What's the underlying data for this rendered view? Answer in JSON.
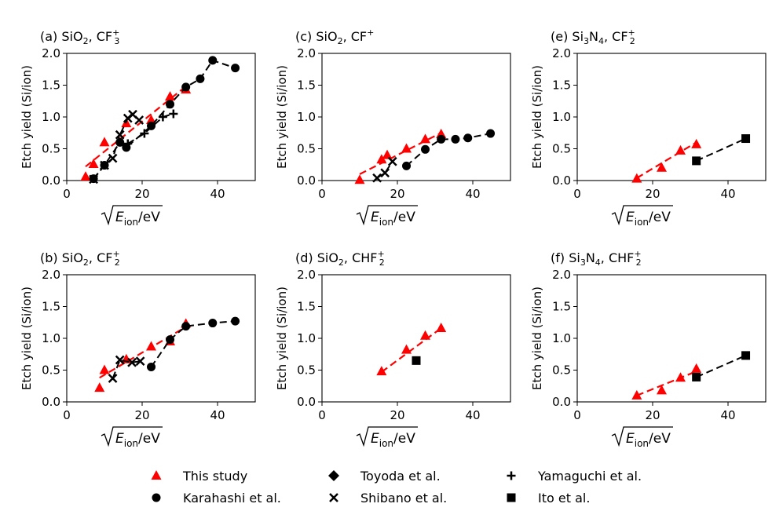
{
  "chart_data": [
    {
      "panel": "a",
      "type": "scatter",
      "title": {
        "prefix": "(a) SiO",
        "sub": "2",
        "mid": ", CF",
        "ionsub": "3",
        "ionsup": "+"
      },
      "ylabel": "Etch yield (Si/ion)",
      "xlabel": {
        "main": "E",
        "sub": "ion",
        "tail": "/eV"
      },
      "xlim": [
        0,
        50
      ],
      "ylim": [
        0,
        2.0
      ],
      "xticks": [
        0,
        20,
        40
      ],
      "yticks": [
        0.0,
        0.5,
        1.0,
        1.5,
        2.0
      ],
      "ytick_labels": [
        "0.0",
        "0.5",
        "1.0",
        "1.5",
        "2.0"
      ],
      "series": [
        {
          "name": "This study",
          "marker": "triangle",
          "color": "#ff0000",
          "points": [
            [
              5,
              0.06
            ],
            [
              7.1,
              0.26
            ],
            [
              10,
              0.6
            ],
            [
              15.8,
              0.9
            ],
            [
              22.4,
              0.95
            ],
            [
              27.4,
              1.32
            ],
            [
              31.6,
              1.43
            ]
          ]
        },
        {
          "name": "This study fit",
          "line": true,
          "color": "#ff0000",
          "points": [
            [
              5,
              0.22
            ],
            [
              31.6,
              1.48
            ]
          ]
        },
        {
          "name": "Karahashi et al.",
          "marker": "circle",
          "color": "#000000",
          "connect": true,
          "points": [
            [
              7.1,
              0.03
            ],
            [
              10,
              0.24
            ],
            [
              14.1,
              0.6
            ],
            [
              15.8,
              0.52
            ],
            [
              22.4,
              0.86
            ],
            [
              27.4,
              1.2
            ],
            [
              31.6,
              1.47
            ],
            [
              35.4,
              1.6
            ],
            [
              38.7,
              1.89
            ],
            [
              44.7,
              1.77
            ]
          ]
        },
        {
          "name": "Shibano et al.",
          "marker": "x",
          "color": "#000000",
          "connect": true,
          "points": [
            [
              7.1,
              0.02
            ],
            [
              10,
              0.24
            ],
            [
              12.2,
              0.35
            ],
            [
              14.1,
              0.72
            ],
            [
              16.2,
              0.98
            ],
            [
              17.5,
              1.04
            ],
            [
              19.2,
              0.95
            ]
          ]
        },
        {
          "name": "Yamaguchi et al.",
          "marker": "plus",
          "color": "#000000",
          "connect": true,
          "points": [
            [
              16.2,
              0.58
            ],
            [
              20.6,
              0.74
            ],
            [
              25.5,
              1.0
            ],
            [
              28.3,
              1.05
            ]
          ]
        }
      ]
    },
    {
      "panel": "b",
      "type": "scatter",
      "title": {
        "prefix": "(b) SiO",
        "sub": "2",
        "mid": ", CF",
        "ionsub": "2",
        "ionsup": "+"
      },
      "ylabel": "Etch yield (Si/ion)",
      "xlabel": {
        "main": "E",
        "sub": "ion",
        "tail": "/eV"
      },
      "xlim": [
        0,
        50
      ],
      "ylim": [
        0,
        2.0
      ],
      "xticks": [
        0,
        20,
        40
      ],
      "yticks": [
        0.0,
        0.5,
        1.0,
        1.5,
        2.0
      ],
      "ytick_labels": [
        "0.0",
        "0.5",
        "1.0",
        "1.5",
        "2.0"
      ],
      "series": [
        {
          "name": "This study",
          "marker": "triangle",
          "color": "#ff0000",
          "points": [
            [
              8.7,
              0.22
            ],
            [
              10,
              0.5
            ],
            [
              15.8,
              0.67
            ],
            [
              22.4,
              0.87
            ],
            [
              27.4,
              0.95
            ],
            [
              31.6,
              1.23
            ]
          ]
        },
        {
          "name": "This study fit",
          "line": true,
          "color": "#ff0000",
          "points": [
            [
              8.7,
              0.38
            ],
            [
              31.6,
              1.18
            ]
          ]
        },
        {
          "name": "Karahashi et al.",
          "marker": "circle",
          "color": "#000000",
          "connect": true,
          "points": [
            [
              22.4,
              0.55
            ],
            [
              27.4,
              0.98
            ],
            [
              31.6,
              1.19
            ],
            [
              38.7,
              1.24
            ],
            [
              44.7,
              1.27
            ]
          ]
        },
        {
          "name": "Shibano et al.",
          "marker": "x",
          "color": "#000000",
          "connect": true,
          "points": [
            [
              12.2,
              0.37
            ],
            [
              14.1,
              0.66
            ],
            [
              17.3,
              0.62
            ],
            [
              19.5,
              0.64
            ]
          ]
        }
      ]
    },
    {
      "panel": "c",
      "type": "scatter",
      "title": {
        "prefix": "(c) SiO",
        "sub": "2",
        "mid": ", CF",
        "ionsub": "",
        "ionsup": "+"
      },
      "ylabel": "Etch yield (Si/ion)",
      "xlabel": {
        "main": "E",
        "sub": "ion",
        "tail": "/eV"
      },
      "xlim": [
        0,
        50
      ],
      "ylim": [
        0,
        2.0
      ],
      "xticks": [
        0,
        20,
        40
      ],
      "yticks": [
        0.0,
        0.5,
        1.0,
        1.5,
        2.0
      ],
      "ytick_labels": [
        "0.0",
        "0.5",
        "1.0",
        "1.5",
        "2.0"
      ],
      "series": [
        {
          "name": "This study",
          "marker": "triangle",
          "color": "#ff0000",
          "points": [
            [
              10,
              0.01
            ],
            [
              15.8,
              0.33
            ],
            [
              17.3,
              0.4
            ],
            [
              22.4,
              0.5
            ],
            [
              27.4,
              0.65
            ],
            [
              31.6,
              0.73
            ]
          ]
        },
        {
          "name": "This study fit",
          "line": true,
          "color": "#ff0000",
          "points": [
            [
              10,
              0.1
            ],
            [
              31.6,
              0.75
            ]
          ]
        },
        {
          "name": "Karahashi et al.",
          "marker": "circle",
          "color": "#000000",
          "connect": true,
          "points": [
            [
              22.4,
              0.23
            ],
            [
              27.4,
              0.49
            ],
            [
              31.6,
              0.65
            ],
            [
              35.4,
              0.65
            ],
            [
              38.7,
              0.67
            ],
            [
              44.7,
              0.74
            ]
          ]
        },
        {
          "name": "Shibano et al.",
          "marker": "x",
          "color": "#000000",
          "connect": true,
          "points": [
            [
              14.6,
              0.04
            ],
            [
              16.7,
              0.12
            ],
            [
              18.7,
              0.3
            ]
          ]
        }
      ]
    },
    {
      "panel": "d",
      "type": "scatter",
      "title": {
        "prefix": "(d) SiO",
        "sub": "2",
        "mid": ", CHF",
        "ionsub": "2",
        "ionsup": "+"
      },
      "ylabel": "Etch yield (Si/ion)",
      "xlabel": {
        "main": "E",
        "sub": "ion",
        "tail": "/eV"
      },
      "xlim": [
        0,
        50
      ],
      "ylim": [
        0,
        2.0
      ],
      "xticks": [
        0,
        20,
        40
      ],
      "yticks": [
        0.0,
        0.5,
        1.0,
        1.5,
        2.0
      ],
      "ytick_labels": [
        "0.0",
        "0.5",
        "1.0",
        "1.5",
        "2.0"
      ],
      "series": [
        {
          "name": "This study",
          "marker": "triangle",
          "color": "#ff0000",
          "points": [
            [
              15.8,
              0.48
            ],
            [
              22.4,
              0.82
            ],
            [
              27.4,
              1.04
            ],
            [
              31.6,
              1.16
            ]
          ]
        },
        {
          "name": "This study fit",
          "line": true,
          "color": "#ff0000",
          "points": [
            [
              15.8,
              0.47
            ],
            [
              31.6,
              1.16
            ]
          ]
        },
        {
          "name": "Ito et al.",
          "marker": "square",
          "color": "#000000",
          "points": [
            [
              25,
              0.65
            ]
          ]
        }
      ]
    },
    {
      "panel": "e",
      "type": "scatter",
      "title": {
        "prefix": "(e) Si",
        "sub": "3",
        "mid": "N",
        "sub2": "4",
        "mid2": ", CF",
        "ionsub": "2",
        "ionsup": "+"
      },
      "ylabel": "Etch yield (Si/ion)",
      "xlabel": {
        "main": "E",
        "sub": "ion",
        "tail": "/eV"
      },
      "xlim": [
        0,
        50
      ],
      "ylim": [
        0,
        2.0
      ],
      "xticks": [
        0,
        20,
        40
      ],
      "yticks": [
        0.0,
        0.5,
        1.0,
        1.5,
        2.0
      ],
      "ytick_labels": [
        "0.0",
        "0.5",
        "1.0",
        "1.5",
        "2.0"
      ],
      "series": [
        {
          "name": "This study",
          "marker": "triangle",
          "color": "#ff0000",
          "points": [
            [
              15.8,
              0.03
            ],
            [
              22.4,
              0.2
            ],
            [
              27.4,
              0.47
            ],
            [
              31.6,
              0.57
            ]
          ]
        },
        {
          "name": "This study fit",
          "line": true,
          "color": "#ff0000",
          "points": [
            [
              15.8,
              0.04
            ],
            [
              31.6,
              0.6
            ]
          ]
        },
        {
          "name": "Ito et al.",
          "marker": "square",
          "color": "#000000",
          "connect": true,
          "points": [
            [
              31.6,
              0.31
            ],
            [
              44.7,
              0.66
            ]
          ]
        }
      ]
    },
    {
      "panel": "f",
      "type": "scatter",
      "title": {
        "prefix": "(f) Si",
        "sub": "3",
        "mid": "N",
        "sub2": "4",
        "mid2": ", CHF",
        "ionsub": "2",
        "ionsup": "+"
      },
      "ylabel": "Etch yield (Si/ion)",
      "xlabel": {
        "main": "E",
        "sub": "ion",
        "tail": "/eV"
      },
      "xlim": [
        0,
        50
      ],
      "ylim": [
        0,
        2.0
      ],
      "xticks": [
        0,
        20,
        40
      ],
      "yticks": [
        0.0,
        0.5,
        1.0,
        1.5,
        2.0
      ],
      "ytick_labels": [
        "0.0",
        "0.5",
        "1.0",
        "1.5",
        "2.0"
      ],
      "series": [
        {
          "name": "This study",
          "marker": "triangle",
          "color": "#ff0000",
          "points": [
            [
              15.8,
              0.1
            ],
            [
              22.4,
              0.18
            ],
            [
              27.4,
              0.38
            ],
            [
              31.6,
              0.52
            ]
          ]
        },
        {
          "name": "This study fit",
          "line": true,
          "color": "#ff0000",
          "points": [
            [
              15.8,
              0.1
            ],
            [
              31.6,
              0.48
            ]
          ]
        },
        {
          "name": "Ito et al.",
          "marker": "square",
          "color": "#000000",
          "connect": true,
          "points": [
            [
              31.6,
              0.39
            ],
            [
              44.7,
              0.73
            ]
          ]
        }
      ]
    }
  ],
  "legend": {
    "placement": "bottom",
    "entries": [
      {
        "label": "This study",
        "marker": "triangle",
        "color": "#ff0000"
      },
      {
        "label": "Karahashi et al.",
        "marker": "circle",
        "color": "#000000"
      },
      {
        "label": "Toyoda et al.",
        "marker": "diamond",
        "color": "#000000"
      },
      {
        "label": "Shibano et al.",
        "marker": "x",
        "color": "#000000"
      },
      {
        "label": "Yamaguchi et al.",
        "marker": "plus",
        "color": "#000000"
      },
      {
        "label": "Ito et al.",
        "marker": "square",
        "color": "#000000"
      }
    ]
  }
}
